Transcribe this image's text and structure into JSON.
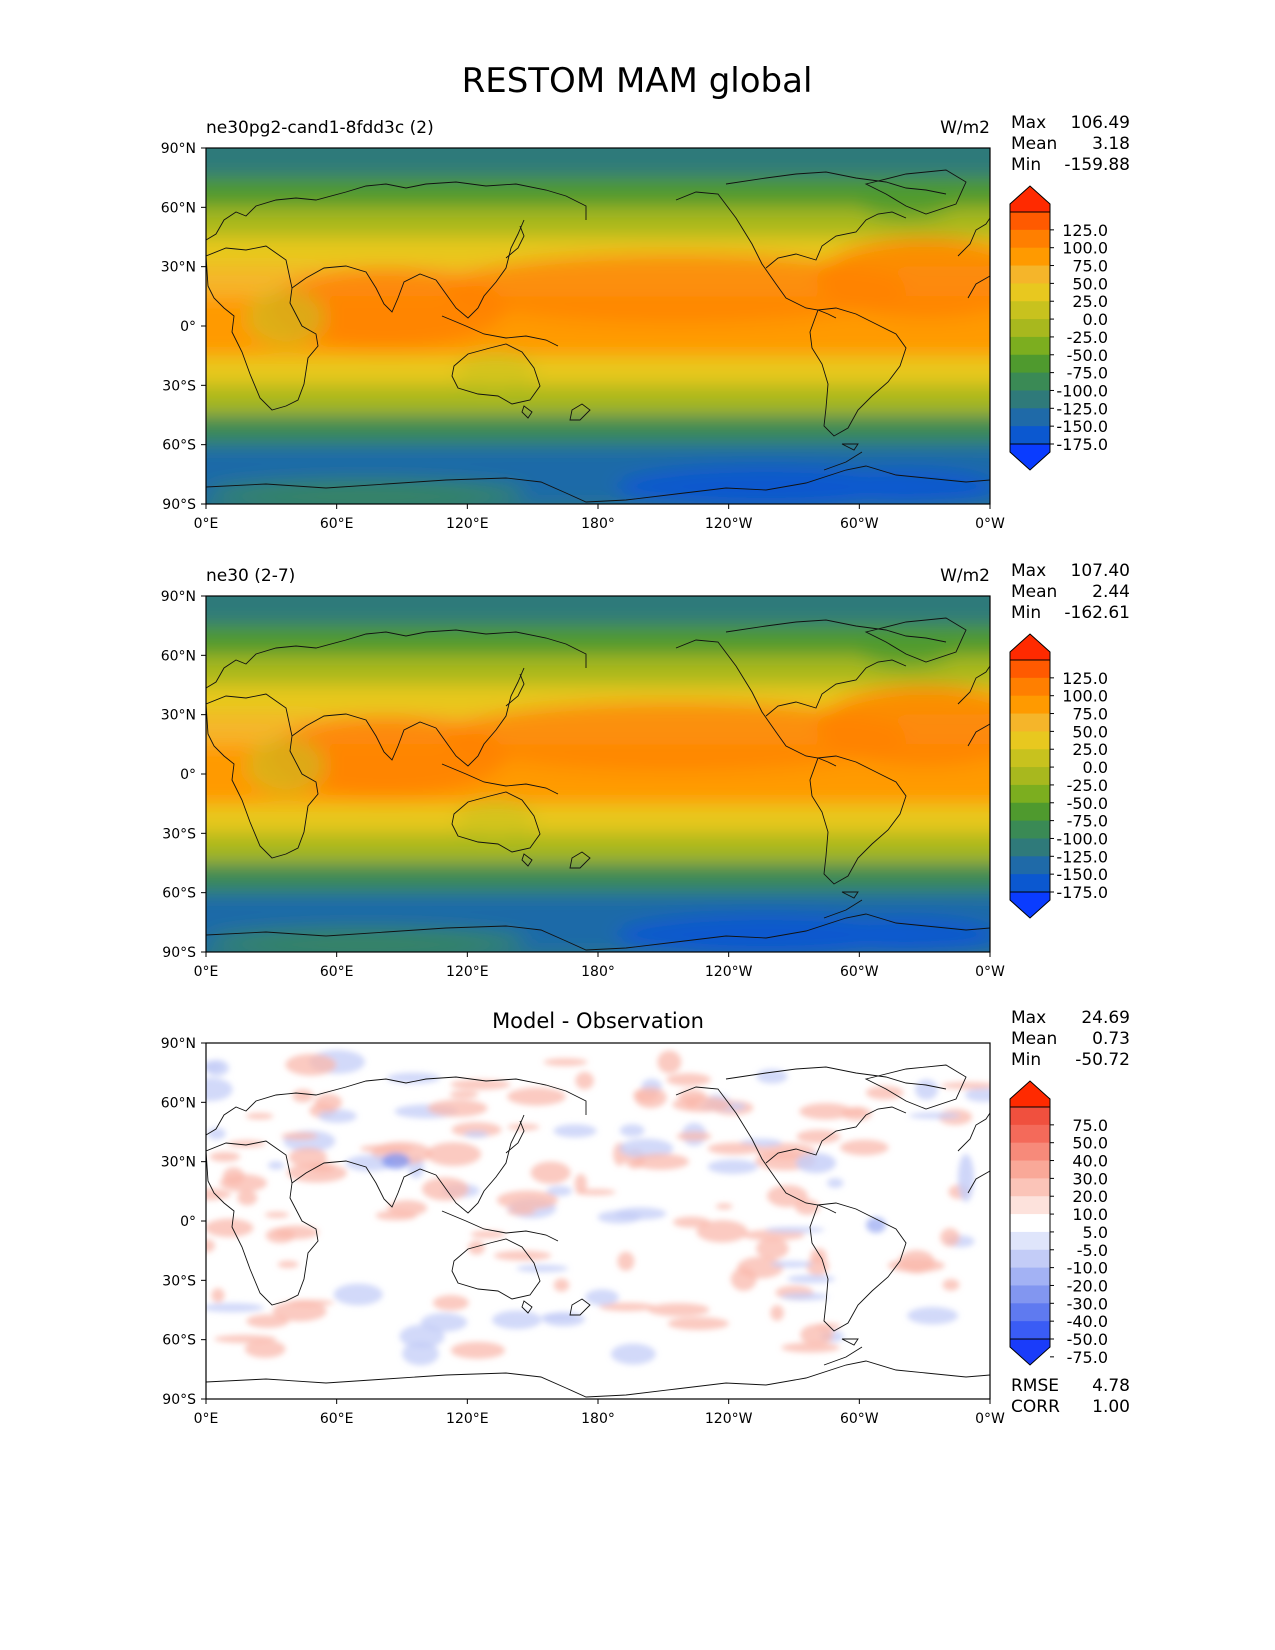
{
  "title": "RESTOM MAM global",
  "panels": [
    {
      "left_title": "ne30pg2-cand1-8fdd3c (2)",
      "center_title": "",
      "units": "W/m2",
      "stats": [
        {
          "label": "Max",
          "value": "106.49"
        },
        {
          "label": "Mean",
          "value": "3.18"
        },
        {
          "label": "Min",
          "value": "-159.88"
        }
      ],
      "colorbar_labels": [
        "125.0",
        "100.0",
        "75.0",
        "50.0",
        "25.0",
        "0.0",
        "-25.0",
        "-50.0",
        "-75.0",
        "-100.0",
        "-125.0",
        "-150.0",
        "-175.0"
      ],
      "colorbar_colors": [
        "#ff2a00",
        "#ff5a00",
        "#ff7f00",
        "#ff9a00",
        "#f5b52a",
        "#e8c81f",
        "#c8c21e",
        "#a8b81e",
        "#7cae1f",
        "#4f9a2e",
        "#3a8a55",
        "#2f7a7a",
        "#1f6aa8",
        "#0b58d0",
        "#0a3cff"
      ],
      "top_arrow_color": "#ff2a00",
      "bottom_arrow_color": "#0a3cff",
      "footer": []
    },
    {
      "left_title": "ne30 (2-7)",
      "center_title": "",
      "units": "W/m2",
      "stats": [
        {
          "label": "Max",
          "value": "107.40"
        },
        {
          "label": "Mean",
          "value": "2.44"
        },
        {
          "label": "Min",
          "value": "-162.61"
        }
      ],
      "colorbar_labels": [
        "125.0",
        "100.0",
        "75.0",
        "50.0",
        "25.0",
        "0.0",
        "-25.0",
        "-50.0",
        "-75.0",
        "-100.0",
        "-125.0",
        "-150.0",
        "-175.0"
      ],
      "colorbar_colors": [
        "#ff2a00",
        "#ff5a00",
        "#ff7f00",
        "#ff9a00",
        "#f5b52a",
        "#e8c81f",
        "#c8c21e",
        "#a8b81e",
        "#7cae1f",
        "#4f9a2e",
        "#3a8a55",
        "#2f7a7a",
        "#1f6aa8",
        "#0b58d0",
        "#0a3cff"
      ],
      "top_arrow_color": "#ff2a00",
      "bottom_arrow_color": "#0a3cff",
      "footer": []
    },
    {
      "left_title": "",
      "center_title": "Model - Observation",
      "units": "",
      "stats": [
        {
          "label": "Max",
          "value": "24.69"
        },
        {
          "label": "Mean",
          "value": "0.73"
        },
        {
          "label": "Min",
          "value": "-50.72"
        }
      ],
      "colorbar_labels": [
        "75.0",
        "50.0",
        "40.0",
        "30.0",
        "20.0",
        "10.0",
        "5.0",
        "-5.0",
        "-10.0",
        "-20.0",
        "-30.0",
        "-40.0",
        "-50.0",
        "-75.0"
      ],
      "colorbar_colors": [
        "#ff2a00",
        "#f0503e",
        "#f46a5a",
        "#f78a7a",
        "#f9a898",
        "#fbc4b8",
        "#fde2dc",
        "#ffffff",
        "#dfe5fb",
        "#c3ccf7",
        "#a3b2f4",
        "#8296f0",
        "#5f7af0",
        "#3a5cf5",
        "#1a3cfa"
      ],
      "top_arrow_color": "#ff2a00",
      "bottom_arrow_color": "#0a3cff",
      "footer": [
        {
          "label": "RMSE",
          "value": "4.78"
        },
        {
          "label": "CORR",
          "value": "1.00"
        }
      ]
    }
  ],
  "y_ticks": [
    "90°N",
    "60°N",
    "30°N",
    "0°",
    "30°S",
    "60°S",
    "90°S"
  ],
  "x_ticks": [
    "0°E",
    "60°E",
    "120°E",
    "180°",
    "120°W",
    "60°W",
    "0°W"
  ],
  "chart_data": [
    {
      "type": "heatmap",
      "title": "ne30pg2-cand1-8fdd3c (2)",
      "units": "W/m2",
      "stats": {
        "max": 106.49,
        "mean": 3.18,
        "min": -159.88
      },
      "levels": [
        -175,
        -150,
        -125,
        -100,
        -75,
        -50,
        -25,
        0,
        25,
        50,
        75,
        100,
        125
      ],
      "lon_range": [
        0,
        360
      ],
      "lat_range": [
        -90,
        90
      ],
      "zonal_profile": {
        "lat": [
          90,
          75,
          60,
          45,
          30,
          15,
          0,
          -15,
          -30,
          -45,
          -60,
          -75,
          -90
        ],
        "value": [
          -110,
          -95,
          -55,
          5,
          55,
          85,
          90,
          65,
          15,
          -60,
          -120,
          -150,
          -120
        ]
      }
    },
    {
      "type": "heatmap",
      "title": "ne30 (2-7)",
      "units": "W/m2",
      "stats": {
        "max": 107.4,
        "mean": 2.44,
        "min": -162.61
      },
      "levels": [
        -175,
        -150,
        -125,
        -100,
        -75,
        -50,
        -25,
        0,
        25,
        50,
        75,
        100,
        125
      ],
      "lon_range": [
        0,
        360
      ],
      "lat_range": [
        -90,
        90
      ],
      "zonal_profile": {
        "lat": [
          90,
          75,
          60,
          45,
          30,
          15,
          0,
          -15,
          -30,
          -45,
          -60,
          -75,
          -90
        ],
        "value": [
          -110,
          -95,
          -55,
          5,
          55,
          85,
          90,
          65,
          15,
          -60,
          -120,
          -150,
          -120
        ]
      }
    },
    {
      "type": "heatmap",
      "title": "Model - Observation",
      "stats": {
        "max": 24.69,
        "mean": 0.73,
        "min": -50.72,
        "rmse": 4.78,
        "corr": 1.0
      },
      "levels": [
        -75,
        -50,
        -40,
        -30,
        -20,
        -10,
        -5,
        5,
        10,
        20,
        30,
        40,
        50,
        75
      ],
      "lon_range": [
        0,
        360
      ],
      "lat_range": [
        -90,
        90
      ]
    }
  ]
}
